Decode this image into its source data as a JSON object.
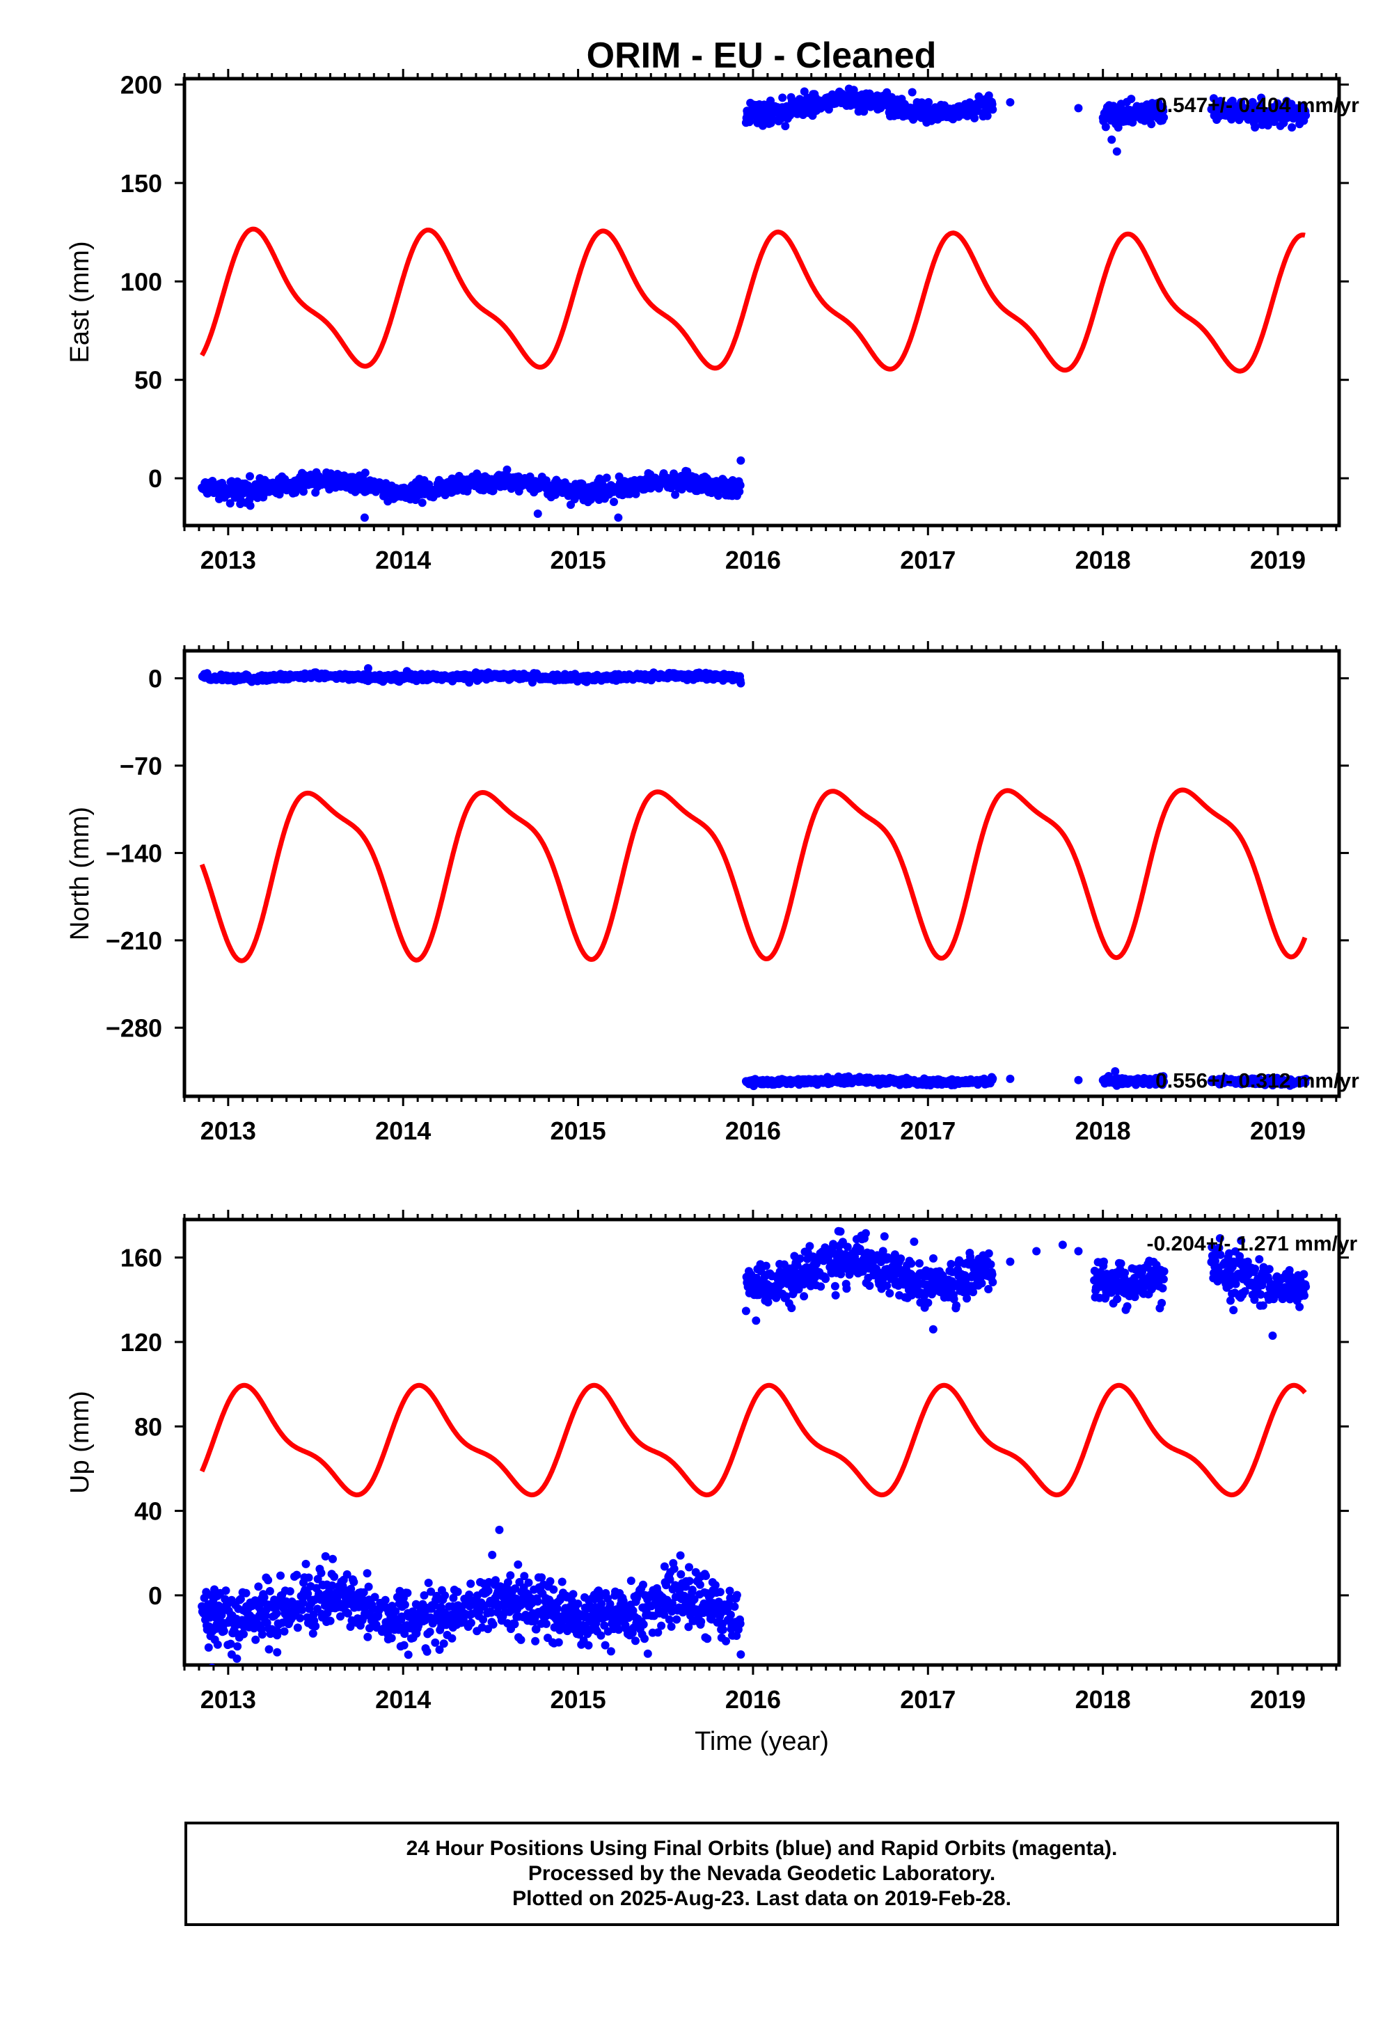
{
  "title": "ORIM  - EU - Cleaned",
  "footer": {
    "line1": "24 Hour Positions Using Final Orbits (blue) and Rapid Orbits (magenta).",
    "line2": "Processed by the Nevada Geodetic Laboratory.",
    "line3": "Plotted on 2025-Aug-23. Last data on 2019-Feb-28."
  },
  "colors": {
    "final_orbits": "#0000ff",
    "model_fit": "#ff0000",
    "axes": "#000000"
  },
  "chart_data": [
    {
      "type": "scatter",
      "name": "east",
      "ylabel": "East (mm)",
      "xlim": [
        2012.75,
        2019.35
      ],
      "ylim": [
        -24,
        203
      ],
      "xticks": [
        2013,
        2014,
        2015,
        2016,
        2017,
        2018,
        2019
      ],
      "yticks": [
        0,
        50,
        100,
        150,
        200
      ],
      "rate_label": "0.547+/- 0.404 mm/yr",
      "rate_label_year": 2018.3,
      "rate_label_value": 190,
      "segments": [
        {
          "start": 2012.85,
          "end": 2015.93,
          "base": -4,
          "slope": 0.0,
          "amp": 2.5,
          "noise": 2.2
        },
        {
          "start": 2015.96,
          "end": 2017.37,
          "base": 189,
          "slope": 0.0,
          "amp": 3.5,
          "noise": 2.6
        },
        {
          "start": 2018.0,
          "end": 2018.35,
          "base": 186,
          "slope": 0.0,
          "amp": 1.0,
          "noise": 3.0
        },
        {
          "start": 2018.62,
          "end": 2019.16,
          "base": 186,
          "slope": 0.0,
          "amp": 1.5,
          "noise": 2.5
        }
      ],
      "isolated_points": [
        {
          "x": 2017.47,
          "y": 191
        },
        {
          "x": 2017.86,
          "y": 188
        },
        {
          "x": 2013.78,
          "y": -20
        },
        {
          "x": 2014.77,
          "y": -18
        },
        {
          "x": 2015.23,
          "y": -20
        },
        {
          "x": 2018.08,
          "y": 166
        },
        {
          "x": 2018.05,
          "y": 172
        },
        {
          "x": 2015.93,
          "y": 9
        }
      ],
      "model": {
        "mean": 90,
        "annual_amp": 30,
        "annual_peak": 2013.2,
        "semi_amp": 10,
        "semi_peak": 2013.1,
        "drift_per_year": -0.5
      }
    },
    {
      "type": "scatter",
      "name": "north",
      "ylabel": "North (mm)",
      "xlim": [
        2012.75,
        2019.35
      ],
      "ylim": [
        -335,
        22
      ],
      "xticks": [
        2013,
        2014,
        2015,
        2016,
        2017,
        2018,
        2019
      ],
      "yticks": [
        0,
        -70,
        -140,
        -210,
        -280
      ],
      "rate_label": "0.556+/- 0.312 mm/yr",
      "rate_label_year": 2018.3,
      "rate_label_value": -322,
      "segments": [
        {
          "start": 2012.85,
          "end": 2015.93,
          "base": 1,
          "slope": 0.0,
          "amp": 0.8,
          "noise": 1.2
        },
        {
          "start": 2015.96,
          "end": 2017.37,
          "base": -323,
          "slope": 0.0,
          "amp": 0.8,
          "noise": 1.2
        },
        {
          "start": 2018.0,
          "end": 2018.35,
          "base": -322,
          "slope": 0.0,
          "amp": 0.5,
          "noise": 1.5
        },
        {
          "start": 2018.62,
          "end": 2019.16,
          "base": -323,
          "slope": 0.0,
          "amp": 0.5,
          "noise": 1.2
        }
      ],
      "isolated_points": [
        {
          "x": 2013.8,
          "y": 8
        },
        {
          "x": 2017.47,
          "y": -321
        },
        {
          "x": 2017.86,
          "y": -322
        },
        {
          "x": 2018.07,
          "y": -315
        },
        {
          "x": 2015.93,
          "y": -4
        }
      ],
      "model": {
        "mean": -148,
        "annual_amp": 62,
        "annual_peak": 2013.55,
        "semi_amp": 18,
        "semi_peak": 2013.35,
        "drift_per_year": 0.5
      }
    },
    {
      "type": "scatter",
      "name": "up",
      "ylabel": "Up (mm)",
      "xlim": [
        2012.75,
        2019.35
      ],
      "ylim": [
        -33,
        178
      ],
      "xticks": [
        2013,
        2014,
        2015,
        2016,
        2017,
        2018,
        2019
      ],
      "yticks": [
        0,
        40,
        80,
        120,
        160
      ],
      "xlabel": "Time (year)",
      "rate_label": "-0.204+/- 1.271 mm/yr",
      "rate_label_year": 2018.25,
      "rate_label_value": 167,
      "segments": [
        {
          "start": 2012.85,
          "end": 2015.93,
          "base": -7,
          "slope": 0.0,
          "amp": 4.0,
          "noise": 7.0
        },
        {
          "start": 2015.96,
          "end": 2017.37,
          "base": 153,
          "slope": 0.0,
          "amp": 6.0,
          "noise": 5.5
        },
        {
          "start": 2017.95,
          "end": 2018.35,
          "base": 150,
          "slope": 0.0,
          "amp": 1.5,
          "noise": 5.0
        },
        {
          "start": 2018.62,
          "end": 2019.16,
          "base": 153,
          "slope": -12.0,
          "amp": 2.0,
          "noise": 5.5
        }
      ],
      "isolated_points": [
        {
          "x": 2014.55,
          "y": 31
        },
        {
          "x": 2017.47,
          "y": 158
        },
        {
          "x": 2017.62,
          "y": 163
        },
        {
          "x": 2017.77,
          "y": 166
        },
        {
          "x": 2017.86,
          "y": 163
        },
        {
          "x": 2017.03,
          "y": 126
        },
        {
          "x": 2018.97,
          "y": 123
        },
        {
          "x": 2013.02,
          "y": -28
        },
        {
          "x": 2013.28,
          "y": -27
        },
        {
          "x": 2015.93,
          "y": -28
        }
      ],
      "model": {
        "mean": 72,
        "annual_amp": 22,
        "annual_peak": 2013.15,
        "semi_amp": 8,
        "semi_peak": 2013.05,
        "drift_per_year": 0.0
      }
    }
  ]
}
